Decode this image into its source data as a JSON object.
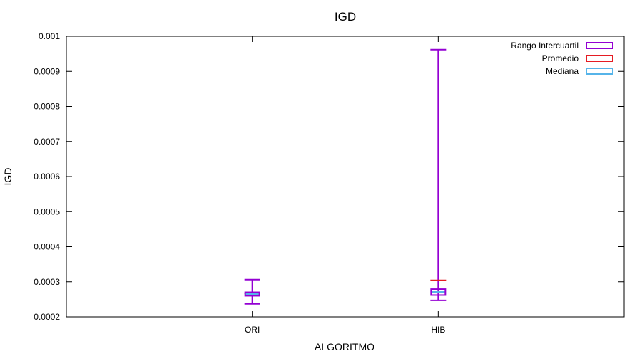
{
  "chart_data": {
    "type": "box",
    "title": "IGD",
    "xlabel": "ALGORITMO",
    "ylabel": "IGD",
    "categories": [
      "ORI",
      "HIB"
    ],
    "ylim": [
      0.0002,
      0.001
    ],
    "yticks": [
      "0.0002",
      "0.0003",
      "0.0004",
      "0.0005",
      "0.0006",
      "0.0007",
      "0.0008",
      "0.0009",
      "0.001"
    ],
    "grid": false,
    "legend_position": "top-right",
    "legend": [
      {
        "label": "Rango Intercuartil",
        "color": "#9400D3"
      },
      {
        "label": "Promedio",
        "color": "#E51C23"
      },
      {
        "label": "Mediana",
        "color": "#56B4E9"
      }
    ],
    "boxes": [
      {
        "category": "ORI",
        "min": 0.000237,
        "q1": 0.00026,
        "median": 0.000265,
        "mean": 0.000267,
        "q3": 0.00027,
        "max": 0.000306
      },
      {
        "category": "HIB",
        "min": 0.000247,
        "q1": 0.000262,
        "median": 0.000271,
        "mean": 0.000304,
        "q3": 0.000279,
        "max": 0.000962
      }
    ]
  }
}
